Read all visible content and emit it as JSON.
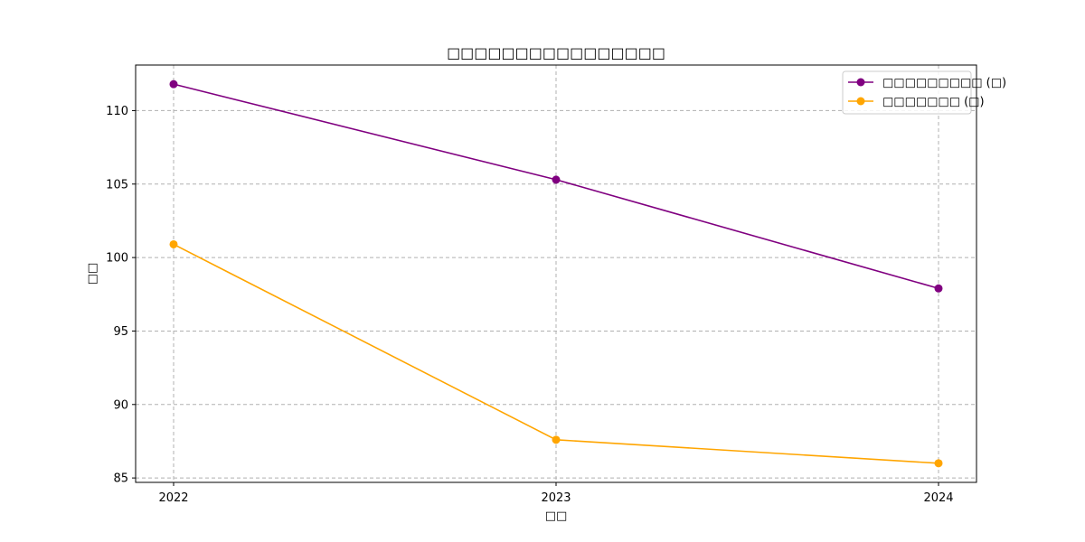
{
  "chart_data": {
    "type": "line",
    "title": "□□□□□□□□□□□□□□□□",
    "xlabel": "□□",
    "ylabel": "□□",
    "categories": [
      "2022",
      "2023",
      "2024"
    ],
    "yticks": [
      85,
      90,
      95,
      100,
      105,
      110
    ],
    "ylim": [
      84.7,
      113.1
    ],
    "grid": true,
    "legend_position": "top-right",
    "series": [
      {
        "name": "□□□□□□□□□ (□)",
        "color": "#800080",
        "values": [
          111.8,
          105.3,
          97.9
        ]
      },
      {
        "name": "□□□□□□□ (□)",
        "color": "#FFA500",
        "values": [
          100.9,
          87.6,
          86.0
        ]
      }
    ]
  }
}
